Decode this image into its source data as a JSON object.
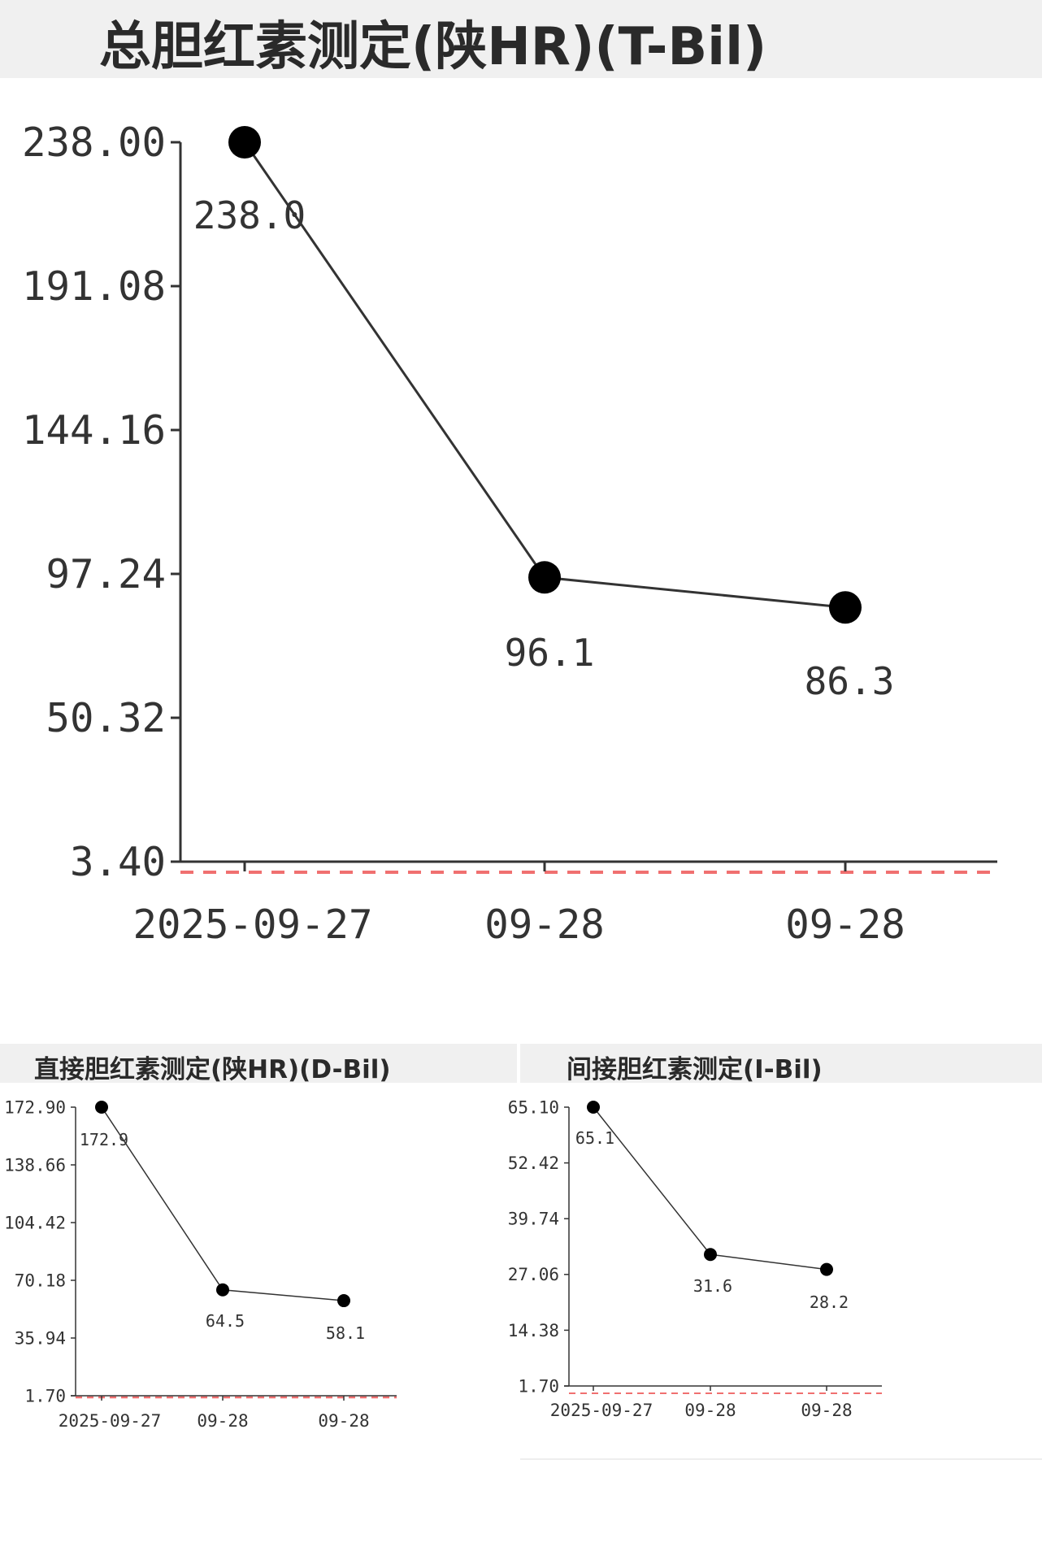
{
  "chart_data": [
    {
      "type": "line",
      "title": "总胆红素测定(陕HR)(T-Bil)",
      "categories": [
        "2025-09-27",
        "09-28",
        "09-28"
      ],
      "values": [
        238.0,
        96.1,
        86.3
      ],
      "data_labels": [
        "238.0",
        "96.1",
        "86.3"
      ],
      "y_ticks": [
        "238.00",
        "191.08",
        "144.16",
        "97.24",
        "50.32",
        "3.40"
      ],
      "ylim": [
        3.4,
        238.0
      ],
      "grid": false,
      "reference_line_color": "#f07070",
      "line_color": "#333333",
      "marker_color": "#000000"
    },
    {
      "type": "line",
      "title": "直接胆红素测定(陕HR)(D-Bil)",
      "categories": [
        "2025-09-27",
        "09-28",
        "09-28"
      ],
      "values": [
        172.9,
        64.5,
        58.1
      ],
      "data_labels": [
        "172.9",
        "64.5",
        "58.1"
      ],
      "y_ticks": [
        "172.90",
        "138.66",
        "104.42",
        "70.18",
        "35.94",
        "1.70"
      ],
      "ylim": [
        1.7,
        172.9
      ],
      "grid": false,
      "reference_line_color": "#f07070",
      "line_color": "#333333",
      "marker_color": "#000000"
    },
    {
      "type": "line",
      "title": "间接胆红素测定(I-Bil)",
      "categories": [
        "2025-09-27",
        "09-28",
        "09-28"
      ],
      "values": [
        65.1,
        31.6,
        28.2
      ],
      "data_labels": [
        "65.1",
        "31.6",
        "28.2"
      ],
      "y_ticks": [
        "65.10",
        "52.42",
        "39.74",
        "27.06",
        "14.38",
        "1.70"
      ],
      "ylim": [
        1.7,
        65.1
      ],
      "grid": false,
      "reference_line_color": "#f07070",
      "line_color": "#333333",
      "marker_color": "#000000"
    }
  ]
}
